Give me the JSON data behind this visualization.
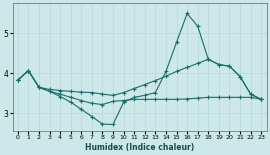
{
  "xlabel": "Humidex (Indice chaleur)",
  "bg_color": "#cce8e8",
  "line_color": "#1a6e6a",
  "grid_color": "#b8d8d8",
  "xlim": [
    -0.5,
    23.5
  ],
  "ylim": [
    2.55,
    5.75
  ],
  "yticks": [
    3,
    4,
    5
  ],
  "xticks": [
    0,
    1,
    2,
    3,
    4,
    5,
    6,
    7,
    8,
    9,
    10,
    11,
    12,
    13,
    14,
    15,
    16,
    17,
    18,
    19,
    20,
    21,
    22,
    23
  ],
  "line1_x": [
    0,
    1,
    2,
    3,
    4,
    5,
    6,
    7,
    8,
    9,
    10,
    11,
    12,
    13,
    14,
    15,
    16,
    17,
    18,
    19,
    20,
    21,
    22,
    23
  ],
  "line1_y": [
    3.83,
    4.07,
    3.65,
    3.6,
    3.57,
    3.55,
    3.53,
    3.52,
    3.48,
    3.45,
    3.52,
    3.62,
    3.72,
    3.82,
    3.93,
    4.05,
    4.15,
    4.25,
    4.35,
    4.22,
    4.18,
    3.92,
    3.48,
    3.35
  ],
  "line2_x": [
    0,
    1,
    2,
    3,
    4,
    5,
    6,
    7,
    8,
    9,
    10,
    11,
    12,
    13,
    14,
    15,
    16,
    17,
    18,
    19,
    20,
    21,
    22,
    23
  ],
  "line2_y": [
    3.83,
    4.07,
    3.65,
    3.55,
    3.42,
    3.28,
    3.1,
    2.92,
    2.73,
    2.72,
    3.28,
    3.4,
    3.45,
    3.52,
    4.05,
    4.78,
    5.5,
    5.18,
    4.35,
    4.22,
    4.18,
    3.92,
    3.48,
    3.35
  ],
  "line3_x": [
    0,
    1,
    2,
    3,
    4,
    5,
    6,
    7,
    8,
    9,
    10,
    11,
    12,
    13,
    14,
    15,
    16,
    17,
    18,
    19,
    20,
    21,
    22,
    23
  ],
  "line3_y": [
    3.83,
    4.07,
    3.65,
    3.55,
    3.48,
    3.4,
    3.32,
    3.25,
    3.22,
    3.3,
    3.32,
    3.35,
    3.35,
    3.35,
    3.35,
    3.35,
    3.36,
    3.38,
    3.4,
    3.4,
    3.4,
    3.4,
    3.4,
    3.35
  ]
}
